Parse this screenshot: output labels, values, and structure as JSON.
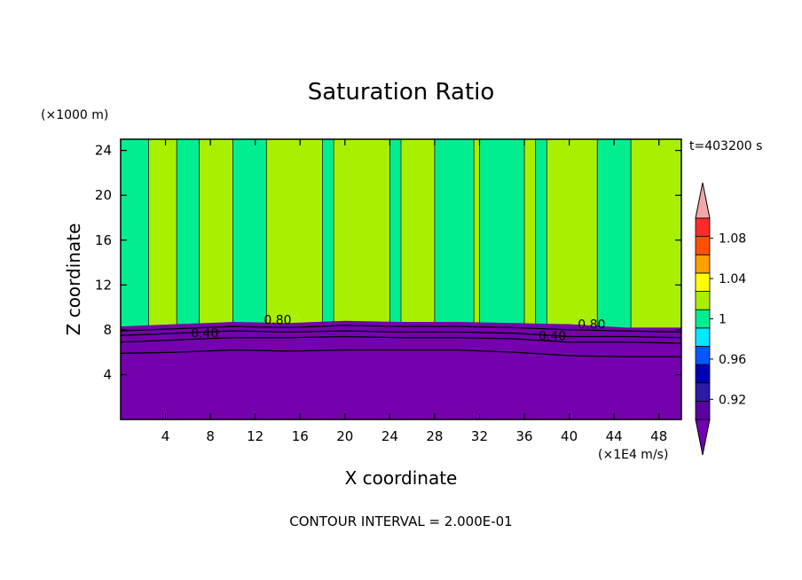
{
  "chart_data": {
    "type": "heatmap",
    "title": "Saturation Ratio",
    "xlabel": "X coordinate",
    "ylabel": "Z coordinate",
    "x_unit": "(×1E4 m/s)",
    "y_unit": "(×1000 m)",
    "time_label": "t=403200 s",
    "footer": "CONTOUR INTERVAL = 2.000E-01",
    "xlim": [
      0,
      50
    ],
    "ylim": [
      0,
      25
    ],
    "x_ticks": [
      4,
      8,
      12,
      16,
      20,
      24,
      28,
      32,
      36,
      40,
      44,
      48
    ],
    "y_ticks": [
      4,
      8,
      12,
      16,
      20,
      24
    ],
    "colorbar": {
      "labels": [
        "1.08",
        "1.04",
        "1",
        "0.96",
        "0.92"
      ],
      "label_values": [
        1.08,
        1.04,
        1.0,
        0.96,
        0.92
      ],
      "levels": [
        0.9,
        0.92,
        0.94,
        0.96,
        0.98,
        1.0,
        1.02,
        1.04,
        1.06,
        1.08,
        1.1
      ],
      "colors": [
        "#5a00a0",
        "#2a1aa6",
        "#0000b8",
        "#0058ff",
        "#00e8ff",
        "#00ee90",
        "#a8f000",
        "#ffff00",
        "#ffa000",
        "#ff5000",
        "#ff2a2a"
      ],
      "under_color": "#7000b0",
      "over_color": "#f4a7a7"
    },
    "regions": {
      "lower_value_color": "#7400ae",
      "upper_band_colors": [
        "#00ee90",
        "#a8f000"
      ],
      "band_edges": [
        0,
        2.5,
        5,
        7,
        10,
        13,
        18,
        19,
        24,
        25,
        28,
        31.5,
        32,
        36,
        37,
        38,
        42.5,
        45.5,
        50
      ],
      "boundary_z": [
        [
          0,
          8.3
        ],
        [
          5,
          8.5
        ],
        [
          10,
          8.7
        ],
        [
          15,
          8.6
        ],
        [
          20,
          8.8
        ],
        [
          25,
          8.7
        ],
        [
          30,
          8.7
        ],
        [
          35,
          8.6
        ],
        [
          40,
          8.5
        ],
        [
          45,
          8.2
        ],
        [
          50,
          8.2
        ]
      ]
    },
    "contour_labels": [
      {
        "text": "0.40",
        "x": 7.5,
        "z": 7.3
      },
      {
        "text": "0.80",
        "x": 14,
        "z": 8.5
      },
      {
        "text": "0.40",
        "x": 38.5,
        "z": 7.1
      },
      {
        "text": "0.80",
        "x": 42,
        "z": 8.1
      }
    ],
    "contours": [
      {
        "level": 0.8,
        "points": [
          [
            0,
            7.9
          ],
          [
            5,
            8.1
          ],
          [
            10,
            8.3
          ],
          [
            15,
            8.2
          ],
          [
            20,
            8.4
          ],
          [
            25,
            8.3
          ],
          [
            30,
            8.3
          ],
          [
            35,
            8.2
          ],
          [
            40,
            8.0
          ],
          [
            45,
            7.9
          ],
          [
            50,
            7.8
          ]
        ]
      },
      {
        "level": 0.6,
        "points": [
          [
            0,
            7.5
          ],
          [
            5,
            7.7
          ],
          [
            10,
            7.9
          ],
          [
            15,
            7.8
          ],
          [
            20,
            7.9
          ],
          [
            25,
            7.8
          ],
          [
            30,
            7.8
          ],
          [
            35,
            7.7
          ],
          [
            40,
            7.4
          ],
          [
            45,
            7.4
          ],
          [
            50,
            7.3
          ]
        ]
      },
      {
        "level": 0.4,
        "points": [
          [
            0,
            6.9
          ],
          [
            5,
            7.1
          ],
          [
            10,
            7.3
          ],
          [
            15,
            7.3
          ],
          [
            20,
            7.4
          ],
          [
            25,
            7.3
          ],
          [
            30,
            7.3
          ],
          [
            35,
            7.2
          ],
          [
            40,
            6.9
          ],
          [
            45,
            6.9
          ],
          [
            50,
            6.8
          ]
        ]
      },
      {
        "level": 0.2,
        "points": [
          [
            0,
            5.9
          ],
          [
            5,
            6.0
          ],
          [
            10,
            6.2
          ],
          [
            15,
            6.1
          ],
          [
            20,
            6.2
          ],
          [
            25,
            6.2
          ],
          [
            30,
            6.2
          ],
          [
            35,
            6.0
          ],
          [
            40,
            5.7
          ],
          [
            45,
            5.6
          ],
          [
            50,
            5.6
          ]
        ]
      }
    ]
  }
}
